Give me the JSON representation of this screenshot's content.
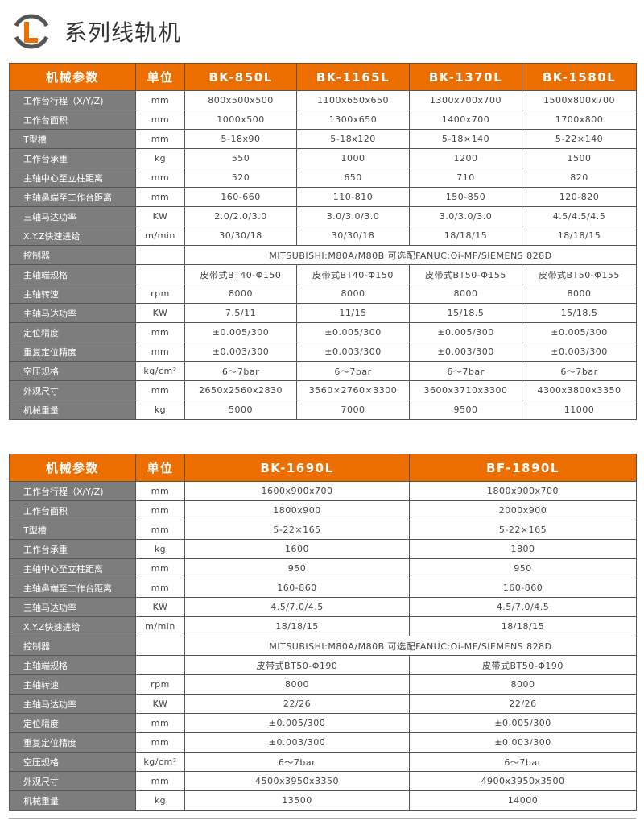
{
  "title": "系列线轨机",
  "colors": {
    "header": "#ec6d00",
    "label_bg": "#7d7d7d"
  },
  "logo_letter": "L",
  "table1": {
    "headers": [
      "机械参数",
      "单位",
      "BK-850L",
      "BK-1165L",
      "BK-1370L",
      "BK-1580L"
    ],
    "rows": [
      [
        "工作台行程（X/Y/Z)",
        "mm",
        "800x500x500",
        "1100x650x650",
        "1300x700x700",
        "1500x800x700"
      ],
      [
        "工作台面积",
        "mm",
        "1000x500",
        "1300x650",
        "1400x700",
        "1700x800"
      ],
      [
        "T型槽",
        "mm",
        "5-18x90",
        "5-18x120",
        "5-18×140",
        "5-22×140"
      ],
      [
        "工作台承重",
        "kg",
        "550",
        "1000",
        "1200",
        "1500"
      ],
      [
        "主轴中心至立柱距离",
        "mm",
        "520",
        "650",
        "710",
        "820"
      ],
      [
        "主轴鼻端至工作台距离",
        "mm",
        "160-660",
        "110-810",
        "150-850",
        "120-820"
      ],
      [
        "三轴马达功率",
        "KW",
        "2.0/2.0/3.0",
        "3.0/3.0/3.0",
        "3.0/3.0/3.0",
        "4.5/4.5/4.5"
      ],
      [
        "X.Y.Z快速进给",
        "m/min",
        "30/30/18",
        "30/30/18",
        "18/18/15",
        "18/18/15"
      ],
      [
        "控制器",
        "",
        "MITSUBISHI:M80A/M80B 可选配FANUC:Oi-MF/SIEMENS 828D"
      ],
      [
        "主轴端规格",
        "",
        "皮带式BT40-Φ150",
        "皮带式BT40-Φ150",
        "皮带式BT50-Φ155",
        "皮带式BT50-Φ155"
      ],
      [
        "主轴转速",
        "rpm",
        "8000",
        "8000",
        "8000",
        "8000"
      ],
      [
        "主轴马达功率",
        "KW",
        "7.5/11",
        "11/15",
        "15/18.5",
        "15/18.5"
      ],
      [
        "定位精度",
        "mm",
        "±0.005/300",
        "±0.005/300",
        "±0.005/300",
        "±0.005/300"
      ],
      [
        "重复定位精度",
        "mm",
        "±0.003/300",
        "±0.003/300",
        "±0.003/300",
        "±0.003/300"
      ],
      [
        "空压规格",
        "kg/cm²",
        "6～7bar",
        "6～7bar",
        "6～7bar",
        "6～7bar"
      ],
      [
        "外观尺寸",
        "mm",
        "2650x2560x2830",
        "3560×2760×3300",
        "3600x3710x3300",
        "4300x3800x3350"
      ],
      [
        "机械重量",
        "kg",
        "5000",
        "7000",
        "9500",
        "11000"
      ]
    ]
  },
  "table2": {
    "headers": [
      "机械参数",
      "单位",
      "BK-1690L",
      "BF-1890L"
    ],
    "rows": [
      [
        "工作台行程（X/Y/Z)",
        "mm",
        "1600x900x700",
        "1800x900x700"
      ],
      [
        "工作台面积",
        "mm",
        "1800x900",
        "2000x900"
      ],
      [
        "T型槽",
        "mm",
        "5-22×165",
        "5-22×165"
      ],
      [
        "工作台承重",
        "kg",
        "1600",
        "1800"
      ],
      [
        "主轴中心至立柱距离",
        "mm",
        "950",
        "950"
      ],
      [
        "主轴鼻端至工作台距离",
        "mm",
        "160-860",
        "160-860"
      ],
      [
        "三轴马达功率",
        "KW",
        "4.5/7.0/4.5",
        "4.5/7.0/4.5"
      ],
      [
        "X.Y.Z快速进给",
        "m/min",
        "18/18/15",
        "18/18/15"
      ],
      [
        "控制器",
        "",
        "MITSUBISHI:M80A/M80B 可选配FANUC:Oi-MF/SIEMENS 828D"
      ],
      [
        "主轴端规格",
        "",
        "皮带式BT50-Φ190",
        "皮带式BT50-Φ190"
      ],
      [
        "主轴转速",
        "rpm",
        "8000",
        "8000"
      ],
      [
        "主轴马达功率",
        "KW",
        "22/26",
        "22/26"
      ],
      [
        "定位精度",
        "mm",
        "±0.005/300",
        "±0.005/300"
      ],
      [
        "重复定位精度",
        "mm",
        "±0.003/300",
        "±0.003/300"
      ],
      [
        "空压规格",
        "kg/cm²",
        "6～7bar",
        "6～7bar"
      ],
      [
        "外观尺寸",
        "mm",
        "4500x3950x3350",
        "4900x3950x3500"
      ],
      [
        "机械重量",
        "kg",
        "13500",
        "14000"
      ]
    ]
  }
}
